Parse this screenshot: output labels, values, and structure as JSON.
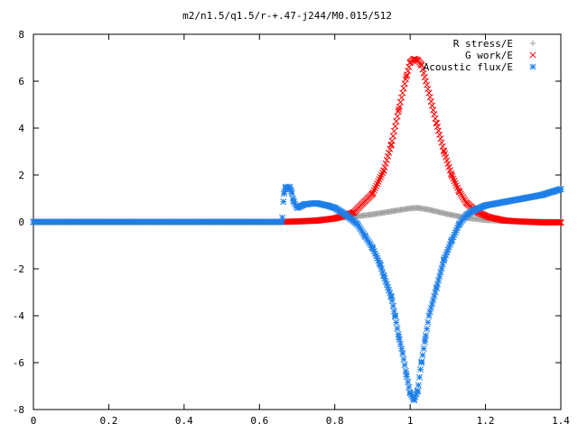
{
  "chart_data": {
    "type": "scatter",
    "title": "m2/n1.5/q1.5/r-+.47-j244/M0.015/512",
    "xlabel": "",
    "ylabel": "",
    "xlim": [
      0,
      1.4
    ],
    "ylim": [
      -8,
      8
    ],
    "x_ticks": [
      0,
      0.2,
      0.4,
      0.6,
      0.8,
      1,
      1.2,
      1.4
    ],
    "x_tick_labels": [
      "0",
      "0.2",
      "0.4",
      "0.6",
      "0.8",
      "1",
      "1.2",
      "1.4"
    ],
    "y_ticks": [
      -8,
      -6,
      -4,
      -2,
      0,
      2,
      4,
      6,
      8
    ],
    "y_tick_labels": [
      "-8",
      "-6",
      "-4",
      "-2",
      "0",
      "2",
      "4",
      "6",
      "8"
    ],
    "grid": false,
    "legend": "top-right",
    "series": [
      {
        "name": "R stress/E",
        "marker": "plus",
        "color": "#a0a0a0",
        "x": [
          0.0,
          0.66,
          0.7,
          0.75,
          0.8,
          0.85,
          0.9,
          0.95,
          1.0,
          1.02,
          1.05,
          1.1,
          1.15,
          1.2,
          1.25,
          1.3,
          1.35,
          1.4
        ],
        "y": [
          0.0,
          0.0,
          0.03,
          0.08,
          0.15,
          0.22,
          0.32,
          0.45,
          0.58,
          0.6,
          0.52,
          0.33,
          0.17,
          0.08,
          0.04,
          0.02,
          0.01,
          0.0
        ]
      },
      {
        "name": "G work/E",
        "marker": "cross",
        "color": "#ff0000",
        "x": [
          0.0,
          0.66,
          0.7,
          0.75,
          0.8,
          0.85,
          0.9,
          0.93,
          0.95,
          0.97,
          0.99,
          1.0,
          1.01,
          1.02,
          1.03,
          1.05,
          1.07,
          1.09,
          1.11,
          1.13,
          1.15,
          1.18,
          1.21,
          1.25,
          1.3,
          1.35,
          1.4
        ],
        "y": [
          0.0,
          0.0,
          0.02,
          0.05,
          0.15,
          0.4,
          1.2,
          2.2,
          3.3,
          4.8,
          6.2,
          6.8,
          6.95,
          6.9,
          6.7,
          5.5,
          4.2,
          3.0,
          2.0,
          1.3,
          0.8,
          0.4,
          0.2,
          0.06,
          0.01,
          -0.02,
          -0.02
        ]
      },
      {
        "name": "Acoustic flux/E",
        "marker": "star",
        "color": "#1e7fe8",
        "x": [
          0.0,
          0.66,
          0.665,
          0.67,
          0.675,
          0.68,
          0.685,
          0.69,
          0.7,
          0.72,
          0.75,
          0.78,
          0.8,
          0.83,
          0.86,
          0.88,
          0.9,
          0.92,
          0.93,
          0.95,
          0.96,
          0.97,
          0.98,
          0.99,
          1.0,
          1.01,
          1.02,
          1.03,
          1.04,
          1.05,
          1.07,
          1.09,
          1.11,
          1.13,
          1.15,
          1.17,
          1.2,
          1.25,
          1.3,
          1.35,
          1.38,
          1.4
        ],
        "y": [
          0.0,
          0.0,
          1.2,
          1.5,
          1.4,
          1.5,
          1.3,
          0.9,
          0.6,
          0.75,
          0.8,
          0.7,
          0.6,
          0.3,
          -0.1,
          -0.6,
          -1.1,
          -1.8,
          -2.3,
          -3.2,
          -4.0,
          -4.9,
          -5.6,
          -6.5,
          -7.3,
          -7.6,
          -7.2,
          -6.0,
          -5.0,
          -4.0,
          -2.8,
          -1.6,
          -0.8,
          -0.1,
          0.3,
          0.5,
          0.7,
          0.85,
          1.0,
          1.15,
          1.3,
          1.4
        ]
      }
    ]
  }
}
